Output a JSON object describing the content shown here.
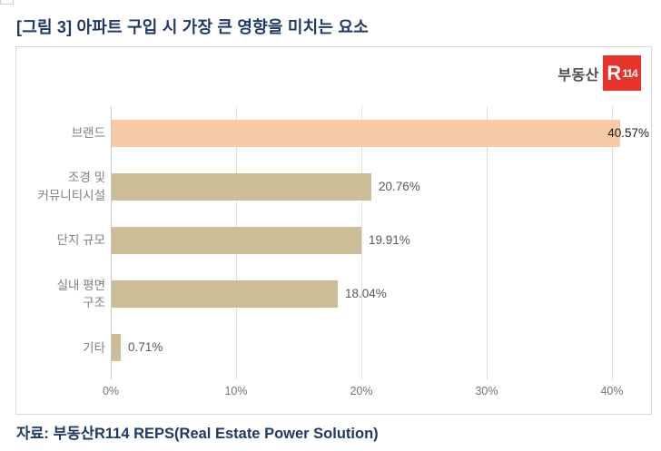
{
  "page": {
    "title": "[그림 3] 아파트 구입 시 가장 큰 영향을 미치는 요소",
    "source": "자료: 부동산R114 REPS(Real Estate Power Solution)"
  },
  "logo": {
    "prefix": "부동산",
    "badge_r": "R",
    "badge_num": "114",
    "badge_bg": "#e8332a",
    "prefix_color": "#4d4d4d"
  },
  "chart_data": {
    "type": "bar",
    "orientation": "horizontal",
    "title": "[그림 3] 아파트 구입 시 가장 큰 영향을 미치는 요소",
    "categories": [
      "브랜드",
      "조경 및\n커뮤니티시설",
      "단지 규모",
      "실내 평면\n구조",
      "기타"
    ],
    "values": [
      40.57,
      20.76,
      19.91,
      18.04,
      0.71
    ],
    "value_labels": [
      "40.57%",
      "20.76%",
      "19.91%",
      "18.04%",
      "0.71%"
    ],
    "highlight_index": 0,
    "bar_color_highlight": "#f8caa8",
    "bar_color_default": "#ccbd97",
    "x_ticks": [
      "0%",
      "10%",
      "20%",
      "30%",
      "40%"
    ],
    "x_tick_values": [
      0,
      10,
      20,
      30,
      40
    ],
    "xlim": [
      0,
      43
    ],
    "grid": "vertical-only",
    "legend": "none",
    "xlabel": "",
    "ylabel": ""
  },
  "colors": {
    "title_navy": "#1e3a63",
    "category_label": "#808080",
    "value_label": "#595959",
    "value_label_emphasis": "#1a1a1a",
    "gridline": "#dedede",
    "chart_border": "#d9d9d9"
  }
}
